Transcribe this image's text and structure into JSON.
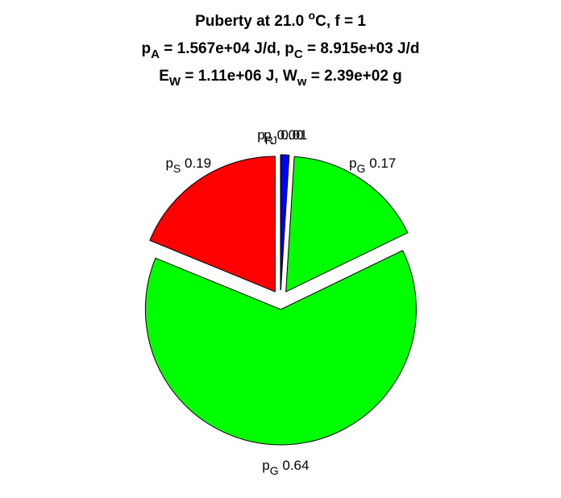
{
  "chart_data": {
    "type": "pie",
    "title": [
      [
        {
          "text": "Puberty at 21.0 "
        },
        {
          "sup": "o"
        },
        {
          "text": "C, f = 1"
        }
      ],
      [
        {
          "text": "p"
        },
        {
          "sub": "A"
        },
        {
          "text": " = 1.567e+04 J/d,  p"
        },
        {
          "sub": "C"
        },
        {
          "text": " = 8.915e+03 J/d"
        }
      ],
      [
        {
          "text": "E"
        },
        {
          "sub": "W"
        },
        {
          "text": " = 1.11e+06 J, W"
        },
        {
          "sub": "w"
        },
        {
          "text": " = 2.39e+02 g"
        }
      ]
    ],
    "labels": [
      {
        "text": "p",
        "sub": "R"
      },
      {
        "text": "p",
        "sub": "J"
      },
      {
        "text": "p",
        "sub": "G"
      },
      {
        "text": "p",
        "sub": "G"
      },
      {
        "text": "p",
        "sub": "S"
      }
    ],
    "values": [
      0.0,
      0.01,
      0.17,
      0.64,
      0.19
    ],
    "value_labels": [
      "0.00",
      "0.01",
      "0.17",
      "0.64",
      "0.19"
    ],
    "colors": [
      "#0000ff",
      "#0000ff",
      "#00ff00",
      "#00ff00",
      "#ff0000"
    ]
  }
}
